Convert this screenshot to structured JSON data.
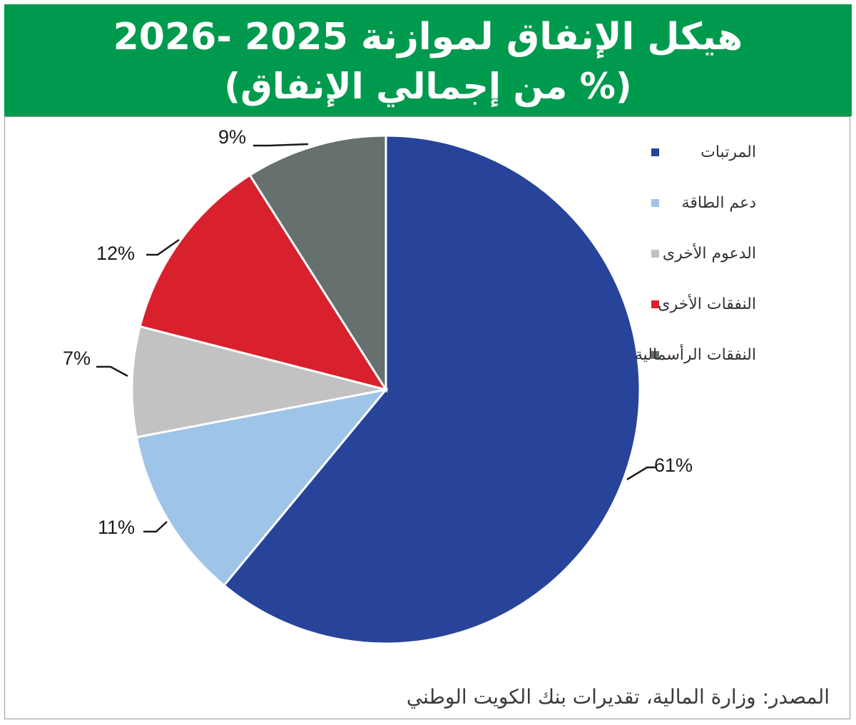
{
  "header": {
    "title_line_1": "هيكل الإنفاق لموازنة 2025 -2026",
    "title_line_2": "(% من إجمالي الإنفاق)",
    "background_color": "#009a4e"
  },
  "source": "المصدر: وزارة المالية، تقديرات بنك الكويت الوطني",
  "chart_data": {
    "type": "pie",
    "title": "هيكل الإنفاق لموازنة 2025 -2026",
    "subtitle": "(% من إجمالي الإنفاق)",
    "categories": [
      "المرتبات",
      "دعم الطاقة",
      "الدعوم الأخرى",
      "النفقات الأخرى",
      "النفقات الرأسمالية"
    ],
    "values": [
      61,
      11,
      7,
      12,
      9
    ],
    "labels": [
      "61%",
      "11%",
      "7%",
      "12%",
      "9%"
    ],
    "colors": [
      "#27449a",
      "#9ec4e8",
      "#c2c2c2",
      "#d8212d",
      "#65706f"
    ],
    "legend_position": "right",
    "unit": "%"
  }
}
